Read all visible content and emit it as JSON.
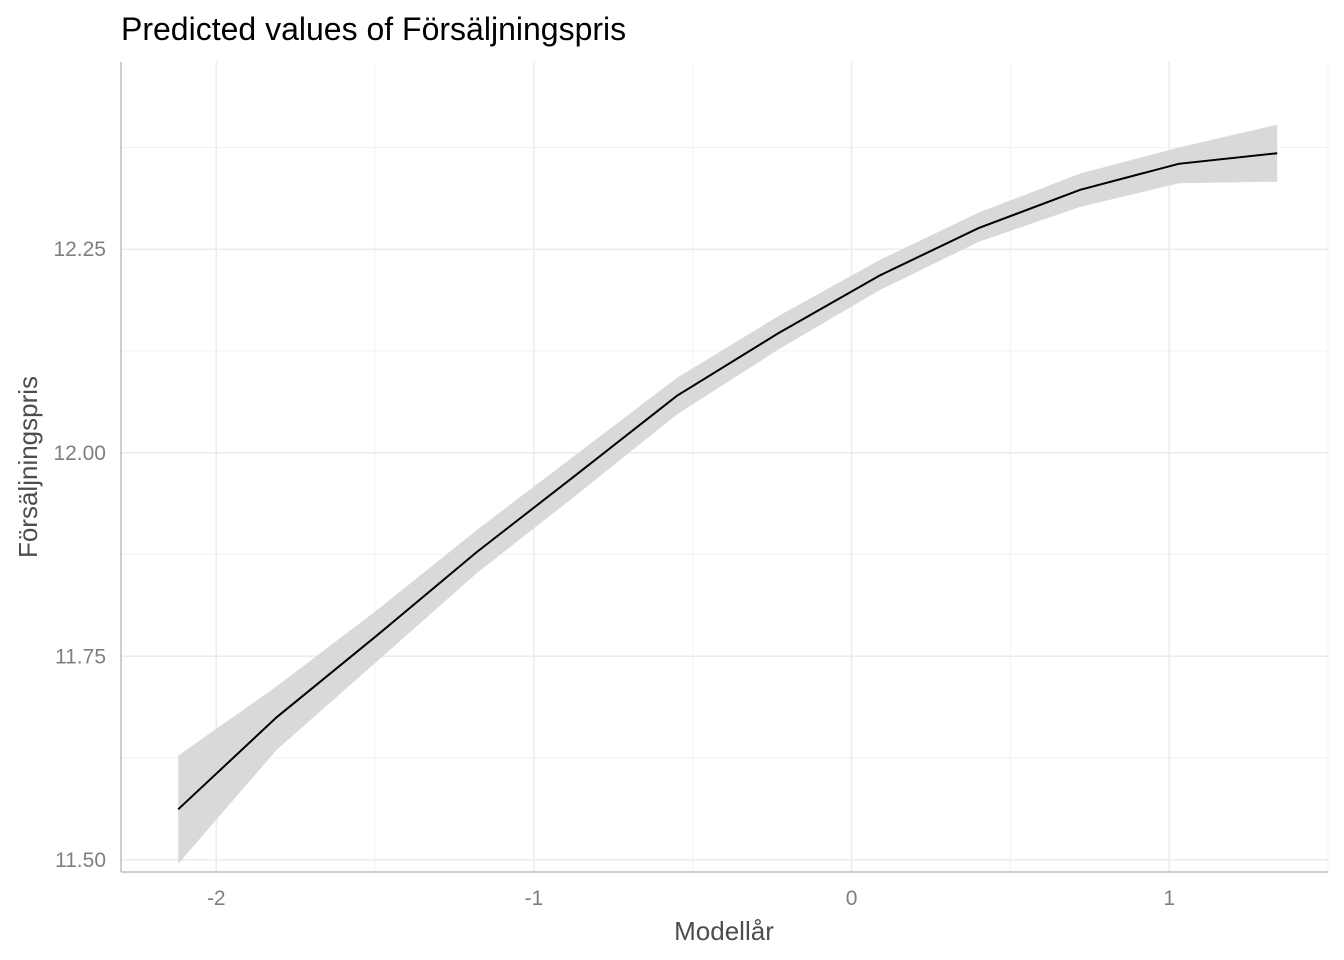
{
  "chart_data": {
    "type": "line",
    "title": "Predicted values of Försäljningspris",
    "xlabel": "Modellår",
    "ylabel": "Försäljningspris",
    "xlim": [
      -2.3,
      1.5
    ],
    "ylim": [
      11.485,
      12.48
    ],
    "x_ticks": [
      -2,
      -1,
      0,
      1
    ],
    "x_tick_labels": [
      "-2",
      "-1",
      "0",
      "1"
    ],
    "y_ticks": [
      11.5,
      11.75,
      12.0,
      12.25
    ],
    "y_tick_labels": [
      "11.50",
      "11.75",
      "12.00",
      "12.25"
    ],
    "grid": true,
    "legend": "none",
    "colors": {
      "line": "#000000",
      "ribbon": "#d9d9d9"
    },
    "series": [
      {
        "x": [
          -2.12,
          -1.81,
          -1.49,
          -1.18,
          -0.86,
          -0.55,
          -0.23,
          0.09,
          0.4,
          0.72,
          1.03,
          1.34
        ],
        "y": [
          11.562,
          11.675,
          11.777,
          11.878,
          11.975,
          12.07,
          12.147,
          12.218,
          12.276,
          12.323,
          12.355,
          12.368
        ],
        "lower": [
          11.495,
          11.635,
          11.745,
          11.852,
          11.95,
          12.047,
          12.127,
          12.2,
          12.259,
          12.302,
          12.331,
          12.333
        ],
        "upper": [
          11.628,
          11.713,
          11.808,
          11.905,
          12.0,
          12.092,
          12.168,
          12.237,
          12.295,
          12.343,
          12.375,
          12.403
        ]
      }
    ]
  }
}
